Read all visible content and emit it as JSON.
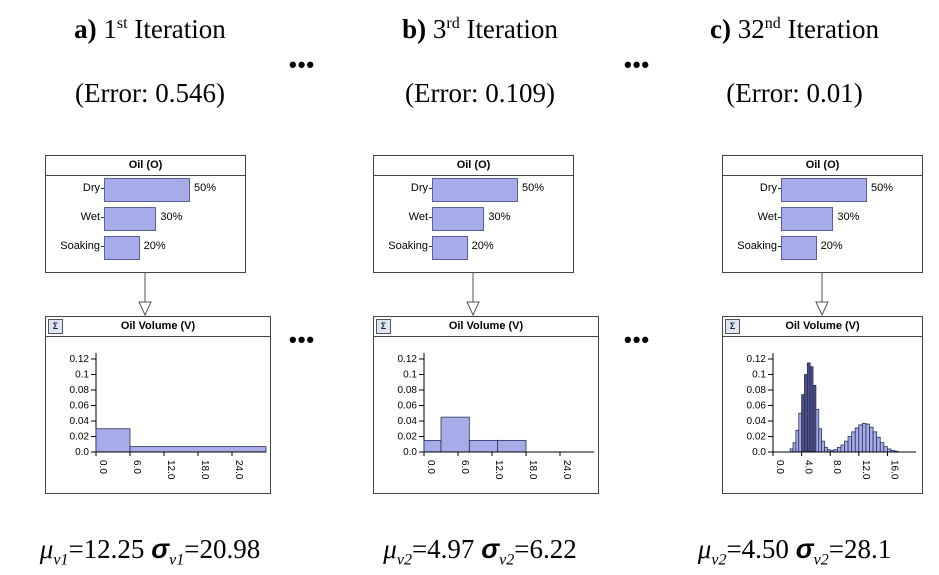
{
  "oil_node_title": "Oil (O)",
  "volume_node_title": "Oil Volume (V)",
  "sigma_symbol": "Σ",
  "ellipsis": "•••",
  "oil_states": [
    {
      "label": "Dry",
      "percent": 50,
      "text": "50%"
    },
    {
      "label": "Wet",
      "percent": 30,
      "text": "30%"
    },
    {
      "label": "Soaking",
      "percent": 20,
      "text": "20%"
    }
  ],
  "panels": [
    {
      "letter": "a)",
      "number": "1",
      "ordinal": "st",
      "word": "Iteration",
      "error": "(Error: 0.546)",
      "mu_sub": "v1",
      "mu_value": "=12.25",
      "sigma_sub": "v1",
      "sigma_value": "=20.98",
      "y_ticks": [
        "0.12",
        "0.1",
        "0.08",
        "0.06",
        "0.04",
        "0.02",
        "0.0"
      ],
      "x_ticks": [
        "0.0",
        "6.0",
        "12.0",
        "18.0",
        "24.0"
      ]
    },
    {
      "letter": "b)",
      "number": "3",
      "ordinal": "rd",
      "word": "Iteration",
      "error": "(Error: 0.109)",
      "mu_sub": "v2",
      "mu_value": "=4.97",
      "sigma_sub": "v2",
      "sigma_value": "=6.22",
      "y_ticks": [
        "0.12",
        "0.1",
        "0.08",
        "0.06",
        "0.04",
        "0.02",
        "0.0"
      ],
      "x_ticks": [
        "0.0",
        "6.0",
        "12.0",
        "18.0",
        "24.0"
      ]
    },
    {
      "letter": "c)",
      "number": "32",
      "ordinal": "nd",
      "word": "Iteration",
      "error": "(Error: 0.01)",
      "mu_sub": "v2",
      "mu_value": "=4.50",
      "sigma_sub": "v2",
      "sigma_value": "=28.1",
      "y_ticks": [
        "0.12",
        "0.1",
        "0.08",
        "0.06",
        "0.04",
        "0.02",
        "0.0"
      ],
      "x_ticks": [
        "0.0",
        "4.0",
        "8.0",
        "12.0",
        "16.0"
      ]
    }
  ],
  "histograms": [
    {
      "xmax": 30,
      "bins": [
        [
          0,
          6,
          0.03
        ],
        [
          6,
          30,
          0.007
        ]
      ],
      "fill": "#a5ace8"
    },
    {
      "xmax": 30,
      "bins": [
        [
          0,
          3,
          0.015
        ],
        [
          3,
          8,
          0.045
        ],
        [
          8,
          13,
          0.015
        ],
        [
          13,
          18,
          0.015
        ]
      ],
      "fill": "#a5ace8"
    },
    {
      "xmax": 20,
      "bins": [
        [
          2.4,
          2.8,
          0.004
        ],
        [
          2.8,
          3.2,
          0.012
        ],
        [
          3.2,
          3.6,
          0.028
        ],
        [
          3.6,
          4.0,
          0.05
        ],
        [
          4.0,
          4.4,
          0.074
        ],
        [
          4.4,
          4.8,
          0.1
        ],
        [
          4.8,
          5.2,
          0.115
        ],
        [
          5.2,
          5.6,
          0.11
        ],
        [
          5.6,
          6.0,
          0.086
        ],
        [
          6.0,
          6.4,
          0.055
        ],
        [
          6.4,
          6.8,
          0.03
        ],
        [
          6.8,
          7.2,
          0.014
        ],
        [
          7.2,
          7.6,
          0.006
        ],
        [
          7.6,
          8.0,
          0.003
        ],
        [
          8.0,
          8.5,
          0.002
        ],
        [
          8.5,
          9.0,
          0.003
        ],
        [
          9.0,
          9.5,
          0.006
        ],
        [
          9.5,
          10.0,
          0.009
        ],
        [
          10.0,
          10.5,
          0.014
        ],
        [
          10.5,
          11.0,
          0.02
        ],
        [
          11.0,
          11.5,
          0.026
        ],
        [
          11.5,
          12.0,
          0.031
        ],
        [
          12.0,
          12.5,
          0.035
        ],
        [
          12.5,
          13.0,
          0.037
        ],
        [
          13.0,
          13.5,
          0.036
        ],
        [
          13.5,
          14.0,
          0.032
        ],
        [
          14.0,
          14.5,
          0.026
        ],
        [
          14.5,
          15.0,
          0.019
        ],
        [
          15.0,
          15.5,
          0.012
        ],
        [
          15.5,
          16.0,
          0.007
        ],
        [
          16.0,
          16.5,
          0.004
        ],
        [
          16.5,
          17.0,
          0.002
        ],
        [
          17.0,
          17.5,
          0.001
        ]
      ],
      "fill": "#a5ace8",
      "dark_range": [
        4.0,
        6.0
      ]
    }
  ]
}
